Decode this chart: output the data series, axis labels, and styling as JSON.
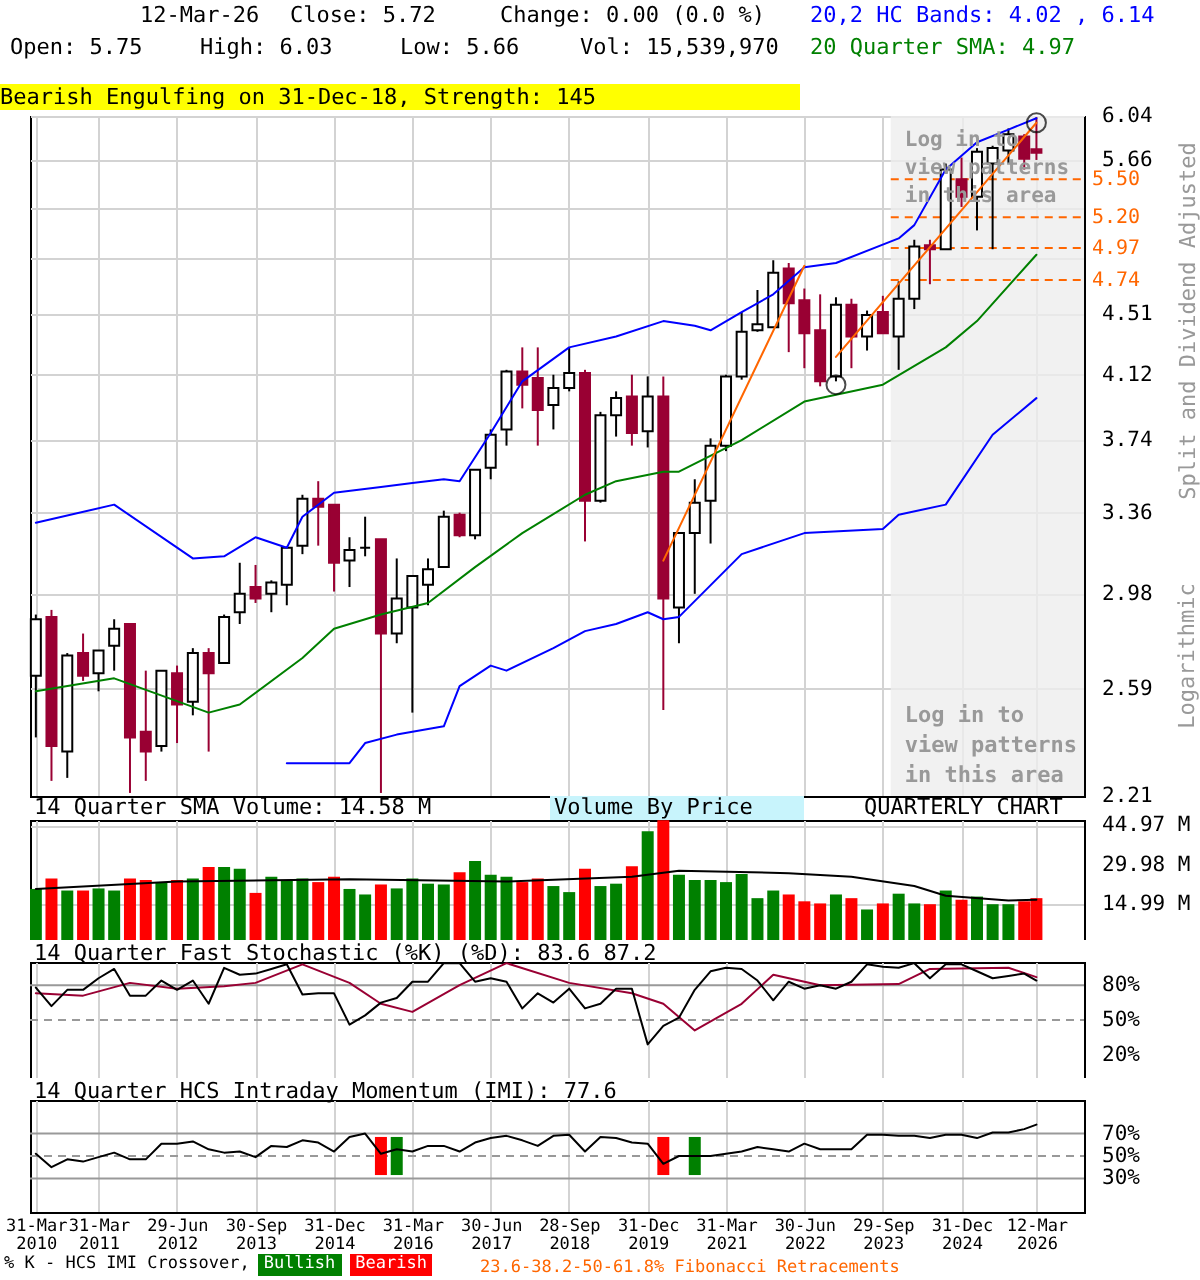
{
  "chart_data": [
    {
      "type": "candlestick",
      "subtitle": "Bearish Engulfing on 31-Dec-18, Strength: 145",
      "ylabel": "Split and Dividend Adjusted",
      "annotations": [
        "12-Mar-26",
        "Close: 5.72",
        "Change: 0.00 (0.0 %)",
        "Open: 5.75",
        "High: 6.03",
        "Low: 5.66",
        "Vol: 15,539,970",
        "Logarithmic",
        "Log in to view patterns in this area",
        "23.6-38.2-50-61.8% Fibonacci Retracements"
      ],
      "x": [
        "2010-03-31",
        "2010-06-30",
        "2010-09-30",
        "2010-12-31",
        "2011-03-31",
        "2011-06-30",
        "2011-09-30",
        "2011-12-31",
        "2012-03-31",
        "2012-06-30",
        "2012-09-30",
        "2012-12-31",
        "2013-03-31",
        "2013-06-30",
        "2013-09-30",
        "2013-12-31",
        "2014-03-31",
        "2014-06-30",
        "2014-09-30",
        "2014-12-31",
        "2015-03-31",
        "2015-06-30",
        "2015-09-30",
        "2015-12-31",
        "2016-03-31",
        "2016-06-30",
        "2016-09-30",
        "2016-12-31",
        "2017-03-31",
        "2017-06-30",
        "2017-09-30",
        "2017-12-31",
        "2018-03-31",
        "2018-06-30",
        "2018-09-30",
        "2018-12-31",
        "2019-03-31",
        "2019-06-30",
        "2019-09-30",
        "2019-12-31",
        "2020-03-31",
        "2020-06-30",
        "2020-09-30",
        "2020-12-31",
        "2021-03-31",
        "2021-06-30",
        "2021-09-30",
        "2021-12-31",
        "2022-03-31",
        "2022-06-30",
        "2022-09-30",
        "2022-12-31",
        "2023-03-31",
        "2023-06-30",
        "2023-09-30",
        "2023-12-31",
        "2024-03-31",
        "2024-06-30",
        "2024-09-30",
        "2024-12-31",
        "2025-03-31",
        "2025-06-30",
        "2025-09-30",
        "2025-12-31",
        "2026-03-12"
      ],
      "ohlc": [
        [
          2.64,
          2.89,
          2.41,
          2.87
        ],
        [
          2.88,
          2.91,
          2.26,
          2.38
        ],
        [
          2.36,
          2.73,
          2.27,
          2.72
        ],
        [
          2.73,
          2.81,
          2.62,
          2.64
        ],
        [
          2.65,
          2.74,
          2.58,
          2.74
        ],
        [
          2.76,
          2.87,
          2.66,
          2.83
        ],
        [
          2.85,
          2.85,
          2.22,
          2.41
        ],
        [
          2.43,
          2.66,
          2.26,
          2.36
        ],
        [
          2.38,
          2.66,
          2.36,
          2.66
        ],
        [
          2.65,
          2.68,
          2.39,
          2.53
        ],
        [
          2.54,
          2.75,
          2.49,
          2.73
        ],
        [
          2.73,
          2.75,
          2.36,
          2.65
        ],
        [
          2.69,
          2.89,
          2.69,
          2.88
        ],
        [
          2.9,
          3.12,
          2.85,
          2.98
        ],
        [
          3.01,
          3.11,
          2.94,
          2.96
        ],
        [
          2.98,
          3.04,
          2.9,
          3.03
        ],
        [
          3.02,
          3.19,
          2.93,
          3.19
        ],
        [
          3.2,
          3.45,
          3.16,
          3.43
        ],
        [
          3.43,
          3.52,
          3.2,
          3.39
        ],
        [
          3.4,
          3.4,
          2.99,
          3.12
        ],
        [
          3.13,
          3.24,
          3.01,
          3.18
        ],
        [
          3.19,
          3.34,
          3.15,
          3.19
        ],
        [
          3.23,
          3.23,
          2.22,
          2.81
        ],
        [
          2.81,
          3.14,
          2.77,
          2.96
        ],
        [
          2.92,
          3.06,
          2.5,
          3.06
        ],
        [
          3.02,
          3.14,
          2.93,
          3.09
        ],
        [
          3.1,
          3.37,
          3.1,
          3.34
        ],
        [
          3.35,
          3.36,
          3.24,
          3.25
        ],
        [
          3.25,
          3.58,
          3.23,
          3.58
        ],
        [
          3.59,
          3.8,
          3.53,
          3.77
        ],
        [
          3.8,
          4.15,
          3.71,
          4.14
        ],
        [
          4.14,
          4.29,
          3.92,
          4.06
        ],
        [
          4.1,
          4.29,
          3.71,
          3.91
        ],
        [
          3.94,
          4.12,
          3.8,
          4.04
        ],
        [
          4.04,
          4.29,
          4.02,
          4.13
        ],
        [
          4.13,
          4.15,
          3.22,
          3.42
        ],
        [
          3.42,
          3.9,
          3.41,
          3.88
        ],
        [
          3.88,
          4.02,
          3.76,
          3.98
        ],
        [
          3.99,
          4.12,
          3.71,
          3.78
        ],
        [
          3.79,
          4.11,
          3.7,
          3.99
        ],
        [
          3.99,
          4.11,
          2.51,
          2.96
        ],
        [
          2.92,
          3.26,
          2.77,
          3.26
        ],
        [
          3.26,
          3.53,
          2.98,
          3.41
        ],
        [
          3.42,
          3.75,
          3.21,
          3.71
        ],
        [
          3.71,
          4.12,
          3.68,
          4.11
        ],
        [
          4.11,
          4.52,
          4.09,
          4.39
        ],
        [
          4.4,
          4.67,
          4.39,
          4.44
        ],
        [
          4.42,
          4.88,
          4.42,
          4.79
        ],
        [
          4.82,
          4.86,
          4.26,
          4.58
        ],
        [
          4.6,
          4.68,
          4.16,
          4.38
        ],
        [
          4.4,
          4.64,
          4.05,
          4.08
        ],
        [
          4.11,
          4.62,
          4.08,
          4.57
        ],
        [
          4.57,
          4.61,
          4.16,
          4.36
        ],
        [
          4.36,
          4.53,
          4.27,
          4.5
        ],
        [
          4.52,
          4.63,
          4.38,
          4.38
        ],
        [
          4.36,
          4.73,
          4.15,
          4.61
        ],
        [
          4.61,
          5.03,
          4.54,
          4.98
        ],
        [
          4.99,
          5.03,
          4.71,
          4.96
        ],
        [
          4.96,
          5.63,
          4.96,
          5.58
        ],
        [
          5.5,
          5.68,
          5.28,
          5.36
        ],
        [
          5.36,
          5.76,
          5.1,
          5.73
        ],
        [
          5.63,
          5.78,
          4.96,
          5.76
        ],
        [
          5.74,
          5.93,
          5.63,
          5.88
        ],
        [
          5.86,
          5.88,
          5.58,
          5.67
        ],
        [
          5.75,
          6.03,
          5.66,
          5.72
        ]
      ],
      "colors": [
        "#ffffff",
        "#990033",
        "#ffffff",
        "#990033",
        "#ffffff",
        "#ffffff",
        "#990033",
        "#990033",
        "#ffffff",
        "#990033",
        "#ffffff",
        "#990033",
        "#ffffff",
        "#ffffff",
        "#990033",
        "#ffffff",
        "#ffffff",
        "#ffffff",
        "#990033",
        "#990033",
        "#ffffff",
        "#000000",
        "#990033",
        "#ffffff",
        "#ffffff",
        "#ffffff",
        "#ffffff",
        "#990033",
        "#ffffff",
        "#ffffff",
        "#ffffff",
        "#990033",
        "#990033",
        "#ffffff",
        "#ffffff",
        "#990033",
        "#ffffff",
        "#ffffff",
        "#990033",
        "#ffffff",
        "#990033",
        "#ffffff",
        "#ffffff",
        "#ffffff",
        "#ffffff",
        "#ffffff",
        "#ffffff",
        "#ffffff",
        "#990033",
        "#990033",
        "#990033",
        "#ffffff",
        "#990033",
        "#ffffff",
        "#990033",
        "#ffffff",
        "#ffffff",
        "#990033",
        "#ffffff",
        "#990033",
        "#ffffff",
        "#ffffff",
        "#ffffff",
        "#990033",
        "#990033"
      ],
      "series": [
        {
          "type": "line",
          "name": "20,2 HC Bands: 4.02 , 6.14",
          "color": "#0000ff",
          "x": [
            "2010-03-31",
            "2011-06-30",
            "2012-09-30",
            "2013-03-31",
            "2013-09-30",
            "2014-03-31",
            "2014-06-30",
            "2014-12-31",
            "2015-09-30",
            "2016-03-31",
            "2016-09-30",
            "2016-12-31",
            "2017-06-30",
            "2017-12-31",
            "2018-09-30",
            "2019-06-30",
            "2020-03-31",
            "2020-09-30",
            "2020-12-31",
            "2021-06-30",
            "2021-12-31",
            "2022-06-30",
            "2022-12-31",
            "2023-12-31",
            "2024-03-31",
            "2024-09-30",
            "2025-03-31",
            "2025-09-30",
            "2026-03-12"
          ],
          "values": [
            3.31,
            3.4,
            3.14,
            3.15,
            3.24,
            3.19,
            3.34,
            3.46,
            3.49,
            3.51,
            3.53,
            3.52,
            3.78,
            4.08,
            4.29,
            4.36,
            4.46,
            4.43,
            4.4,
            4.52,
            4.64,
            4.83,
            4.86,
            5.04,
            5.14,
            5.58,
            5.81,
            5.92,
            6.02
          ]
        },
        {
          "type": "line",
          "color": "#0000ff",
          "x": [
            "2014-03-31",
            "2015-03-31",
            "2015-06-30",
            "2015-12-31",
            "2016-09-30",
            "2016-12-31",
            "2017-06-30",
            "2017-09-30",
            "2018-06-30",
            "2018-12-31",
            "2019-06-30",
            "2019-12-31",
            "2020-03-31",
            "2020-06-30",
            "2021-06-30",
            "2022-06-30",
            "2023-09-30",
            "2023-12-31",
            "2024-09-30",
            "2025-06-30",
            "2026-03-12"
          ],
          "values": [
            2.32,
            2.32,
            2.39,
            2.42,
            2.45,
            2.6,
            2.68,
            2.66,
            2.75,
            2.82,
            2.85,
            2.9,
            2.87,
            2.88,
            3.16,
            3.26,
            3.28,
            3.35,
            3.4,
            3.77,
            3.98
          ]
        },
        {
          "type": "line",
          "name": "20 Quarter SMA: 4.97",
          "color": "#008000",
          "x": [
            "2010-03-31",
            "2011-06-30",
            "2012-12-31",
            "2013-06-30",
            "2014-06-30",
            "2014-12-31",
            "2015-09-30",
            "2016-06-30",
            "2017-03-31",
            "2017-12-31",
            "2018-12-31",
            "2019-06-30",
            "2020-03-31",
            "2020-06-30",
            "2021-06-30",
            "2022-06-30",
            "2023-09-30",
            "2024-09-30",
            "2025-03-31",
            "2026-03-12"
          ],
          "values": [
            2.58,
            2.63,
            2.5,
            2.53,
            2.71,
            2.83,
            2.89,
            2.94,
            3.1,
            3.26,
            3.45,
            3.52,
            3.57,
            3.57,
            3.74,
            3.96,
            4.06,
            4.29,
            4.46,
            4.92
          ]
        },
        {
          "type": "line",
          "color": "#ff6600",
          "x": [
            "2020-03-31",
            "2022-06-30"
          ],
          "values": [
            3.13,
            4.84
          ]
        },
        {
          "type": "line",
          "color": "#ff6600",
          "x": [
            "2022-12-31",
            "2026-03-12"
          ],
          "values": [
            4.23,
            5.98
          ]
        },
        {
          "type": "scatter",
          "color": "#000000",
          "marker": "circle",
          "x": [
            "2022-12-31",
            "2026-03-12"
          ],
          "values": [
            4.06,
            5.98
          ]
        }
      ],
      "ref_lines": [
        {
          "axis": "y",
          "value": 5.5,
          "label": "5.50",
          "color": "#ff6600",
          "line_style": "dashed"
        },
        {
          "axis": "y",
          "value": 5.2,
          "label": "5.20",
          "color": "#ff6600",
          "line_style": "dashed"
        },
        {
          "axis": "y",
          "value": 4.97,
          "label": "4.97",
          "color": "#ff6600",
          "line_style": "dashed"
        },
        {
          "axis": "y",
          "value": 4.74,
          "label": "4.74",
          "color": "#ff6600",
          "line_style": "dashed"
        }
      ],
      "bands": [
        {
          "axis": "x",
          "from": "2023-11-15",
          "to": "2026-12-14",
          "label": "Log in to view patterns in this area",
          "color": "#eeeeee"
        }
      ],
      "xlim": [
        "2010-02-25",
        "2026-12-14"
      ],
      "xticks": [
        {
          "value": "2010-03-31",
          "label": null
        },
        {
          "value": "2011-03-31",
          "label": null
        },
        {
          "value": "2012-06-29",
          "label": null
        },
        {
          "value": "2013-09-30",
          "label": null
        },
        {
          "value": "2014-12-31",
          "label": null
        },
        {
          "value": "2016-03-31",
          "label": null
        },
        {
          "value": "2017-06-30",
          "label": null
        },
        {
          "value": "2018-09-28",
          "label": null
        },
        {
          "value": "2019-12-31",
          "label": null
        },
        {
          "value": "2021-03-31",
          "label": null
        },
        {
          "value": "2022-06-30",
          "label": null
        },
        {
          "value": "2023-09-29",
          "label": null
        },
        {
          "value": "2024-12-31",
          "label": null
        },
        {
          "value": "2026-03-12",
          "label": null
        }
      ],
      "ylim": [
        2.21,
        6.04
      ],
      "yticks": [
        2.21,
        2.59,
        2.98,
        3.36,
        3.74,
        4.12,
        4.51,
        {
          "value": 4.89,
          "label": null
        },
        {
          "value": 5.27,
          "label": null
        },
        5.66,
        6.04
      ],
      "log": true,
      "grid": true,
      "tick_labels": "y",
      "legend": "top right"
    },
    {
      "type": "bar",
      "title": "14 Quarter SMA Volume: 14.58 M",
      "annotations": [
        "Volume By Price",
        "QUARTERLY CHART"
      ],
      "x": [
        "2010-03-31",
        "2010-06-30",
        "2010-09-30",
        "2010-12-31",
        "2011-03-31",
        "2011-06-30",
        "2011-09-30",
        "2011-12-31",
        "2012-03-31",
        "2012-06-30",
        "2012-09-30",
        "2012-12-31",
        "2013-03-31",
        "2013-06-30",
        "2013-09-30",
        "2013-12-31",
        "2014-03-31",
        "2014-06-30",
        "2014-09-30",
        "2014-12-31",
        "2015-03-31",
        "2015-06-30",
        "2015-09-30",
        "2015-12-31",
        "2016-03-31",
        "2016-06-30",
        "2016-09-30",
        "2016-12-31",
        "2017-03-31",
        "2017-06-30",
        "2017-09-30",
        "2017-12-31",
        "2018-03-31",
        "2018-06-30",
        "2018-09-30",
        "2018-12-31",
        "2019-03-31",
        "2019-06-30",
        "2019-09-30",
        "2019-12-31",
        "2020-03-31",
        "2020-06-30",
        "2020-09-30",
        "2020-12-31",
        "2021-03-31",
        "2021-06-30",
        "2021-09-30",
        "2021-12-31",
        "2022-03-31",
        "2022-06-30",
        "2022-09-30",
        "2022-12-31",
        "2023-03-31",
        "2023-06-30",
        "2023-09-30",
        "2023-12-31",
        "2024-03-31",
        "2024-06-30",
        "2024-09-30",
        "2024-12-31",
        "2025-03-31",
        "2025-06-30",
        "2025-09-30",
        "2025-12-31",
        "2026-03-12"
      ],
      "series": [
        {
          "type": "bar",
          "values": [
            20.8,
            24.8,
            20.2,
            20.2,
            21.0,
            20.2,
            24.8,
            24.2,
            23.1,
            24.2,
            24.8,
            29.1,
            29.1,
            28.5,
            19.3,
            25.4,
            23.9,
            24.8,
            23.4,
            25.4,
            20.8,
            18.7,
            22.5,
            21.0,
            24.8,
            22.8,
            22.5,
            27.1,
            31.4,
            26.2,
            25.4,
            23.4,
            24.8,
            21.9,
            19.6,
            28.5,
            21.9,
            22.8,
            29.4,
            42.7,
            46.9,
            26.2,
            24.2,
            24.2,
            23.4,
            26.5,
            17.3,
            20.2,
            18.7,
            16.1,
            15.3,
            18.7,
            17.3,
            13.0,
            15.3,
            19.0,
            15.3,
            15.0,
            20.2,
            16.7,
            17.9,
            15.0,
            15.0,
            16.1,
            17.3
          ],
          "colors": [
            "#008000",
            "#ff0000",
            "#008000",
            "#ff0000",
            "#008000",
            "#008000",
            "#ff0000",
            "#ff0000",
            "#008000",
            "#ff0000",
            "#008000",
            "#ff0000",
            "#008000",
            "#008000",
            "#ff0000",
            "#008000",
            "#008000",
            "#008000",
            "#ff0000",
            "#ff0000",
            "#008000",
            "#008000",
            "#ff0000",
            "#008000",
            "#008000",
            "#008000",
            "#008000",
            "#ff0000",
            "#008000",
            "#008000",
            "#008000",
            "#ff0000",
            "#ff0000",
            "#008000",
            "#008000",
            "#ff0000",
            "#008000",
            "#008000",
            "#ff0000",
            "#008000",
            "#ff0000",
            "#008000",
            "#008000",
            "#008000",
            "#008000",
            "#008000",
            "#008000",
            "#008000",
            "#ff0000",
            "#ff0000",
            "#ff0000",
            "#008000",
            "#ff0000",
            "#008000",
            "#ff0000",
            "#008000",
            "#008000",
            "#ff0000",
            "#008000",
            "#ff0000",
            "#008000",
            "#008000",
            "#008000",
            "#ff0000",
            "#ff0000"
          ]
        },
        {
          "type": "line",
          "color": "#000000",
          "x": [
            "2010-03-31",
            "2012-06-30",
            "2015-03-31",
            "2017-09-30",
            "2019-09-30",
            "2020-06-30",
            "2022-03-31",
            "2023-03-31",
            "2024-03-31",
            "2024-09-30",
            "2025-09-30",
            "2026-03-12"
          ],
          "values": [
            20.8,
            23.6,
            24.5,
            23.6,
            25.4,
            27.7,
            26.8,
            25.4,
            21.9,
            18.2,
            16.4,
            16.7
          ]
        }
      ],
      "xlim": [
        "2010-02-25",
        "2026-12-14"
      ],
      "xticks": [
        {
          "value": "2010-03-31",
          "label": null
        },
        {
          "value": "2011-03-31",
          "label": null
        },
        {
          "value": "2012-06-29",
          "label": null
        },
        {
          "value": "2013-09-30",
          "label": null
        },
        {
          "value": "2014-12-31",
          "label": null
        },
        {
          "value": "2016-03-31",
          "label": null
        },
        {
          "value": "2017-06-30",
          "label": null
        },
        {
          "value": "2018-09-28",
          "label": null
        },
        {
          "value": "2019-12-31",
          "label": null
        },
        {
          "value": "2021-03-31",
          "label": null
        },
        {
          "value": "2022-06-30",
          "label": null
        },
        {
          "value": "2023-09-29",
          "label": null
        },
        {
          "value": "2024-12-31",
          "label": null
        },
        {
          "value": "2026-03-12",
          "label": null
        }
      ],
      "ylim": [
        1.4,
        47
      ],
      "yticks": [
        {
          "value": 14.99,
          "label": "14.99 M"
        },
        {
          "value": 29.98,
          "label": "29.98 M"
        },
        {
          "value": 44.97,
          "label": "44.97 M"
        }
      ],
      "grid": true,
      "tick_labels": "y"
    },
    {
      "type": "line",
      "title": "14 Quarter Fast Stochastic (%K) (%D): 83.6  87.2",
      "x": [
        "2010-03-31",
        "2010-06-30",
        "2010-09-30",
        "2010-12-31",
        "2011-03-31",
        "2011-06-30",
        "2011-09-30",
        "2011-12-31",
        "2012-03-31",
        "2012-06-30",
        "2012-09-30",
        "2012-12-31",
        "2013-03-31",
        "2013-06-30",
        "2013-09-30",
        "2013-12-31",
        "2014-03-31",
        "2014-06-30",
        "2014-09-30",
        "2014-12-31",
        "2015-03-31",
        "2015-06-30",
        "2015-09-30",
        "2015-12-31",
        "2016-03-31",
        "2016-06-30",
        "2016-09-30",
        "2016-12-31",
        "2017-03-31",
        "2017-06-30",
        "2017-09-30",
        "2017-12-31",
        "2018-03-31",
        "2018-06-30",
        "2018-09-30",
        "2018-12-31",
        "2019-03-31",
        "2019-06-30",
        "2019-09-30",
        "2019-12-31",
        "2020-03-31",
        "2020-06-30",
        "2020-09-30",
        "2020-12-31",
        "2021-03-31",
        "2021-06-30",
        "2021-09-30",
        "2021-12-31",
        "2022-03-31",
        "2022-06-30",
        "2022-09-30",
        "2022-12-31",
        "2023-03-31",
        "2023-06-30",
        "2023-09-30",
        "2023-12-31",
        "2024-03-31",
        "2024-06-30",
        "2024-09-30",
        "2024-12-31",
        "2025-03-31",
        "2025-06-30",
        "2025-09-30",
        "2025-12-31",
        "2026-03-12"
      ],
      "series": [
        {
          "type": "line",
          "color": "#990033",
          "x": [
            "2010-03-31",
            "2010-12-31",
            "2011-09-30",
            "2012-06-30",
            "2013-03-31",
            "2013-09-30",
            "2014-06-30",
            "2015-03-31",
            "2015-09-30",
            "2016-03-31",
            "2016-12-31",
            "2017-09-30",
            "2018-09-30",
            "2019-09-30",
            "2020-03-31",
            "2020-09-30",
            "2021-06-30",
            "2021-12-31",
            "2022-09-30",
            "2023-12-31",
            "2024-06-30",
            "2025-09-30",
            "2026-03-12"
          ],
          "values": [
            73,
            71,
            82,
            77,
            79,
            82,
            98,
            82,
            64,
            57,
            80,
            99,
            82,
            73,
            64,
            41,
            64,
            89,
            80,
            81,
            94,
            95,
            87
          ]
        },
        {
          "type": "line",
          "color": "#000000",
          "values": [
            78,
            62,
            76,
            76,
            86,
            94,
            71,
            71,
            84,
            76,
            84,
            64,
            95,
            89,
            90,
            94,
            98,
            72,
            73,
            73,
            46,
            54,
            65,
            69,
            83,
            83,
            99,
            99,
            83,
            86,
            83,
            60,
            73,
            65,
            77,
            60,
            64,
            77,
            77,
            29,
            45,
            52,
            76,
            92,
            95,
            94,
            84,
            67,
            83,
            77,
            80,
            77,
            83,
            98,
            96,
            95,
            99,
            86,
            98,
            98,
            92,
            86,
            88,
            90,
            84
          ]
        }
      ],
      "ref_lines": [
        {
          "axis": "y",
          "value": 80,
          "color": "#999999",
          "line_style": "solid"
        },
        {
          "axis": "y",
          "value": 50,
          "color": "#999999",
          "line_style": "dashed"
        }
      ],
      "xlim": [
        "2010-02-25",
        "2026-12-14"
      ],
      "xticks": [
        {
          "value": "2010-03-31",
          "label": null
        },
        {
          "value": "2011-03-31",
          "label": null
        },
        {
          "value": "2012-06-29",
          "label": null
        },
        {
          "value": "2013-09-30",
          "label": null
        },
        {
          "value": "2014-12-31",
          "label": null
        },
        {
          "value": "2016-03-31",
          "label": null
        },
        {
          "value": "2017-06-30",
          "label": null
        },
        {
          "value": "2018-09-28",
          "label": null
        },
        {
          "value": "2019-12-31",
          "label": null
        },
        {
          "value": "2021-03-31",
          "label": null
        },
        {
          "value": "2022-06-30",
          "label": null
        },
        {
          "value": "2023-09-29",
          "label": null
        },
        {
          "value": "2024-12-31",
          "label": null
        },
        {
          "value": "2026-03-12",
          "label": null
        }
      ],
      "ylim": [
        0,
        100
      ],
      "yticks": [
        {
          "value": 20,
          "label": "20%"
        },
        {
          "value": 50,
          "label": "50%"
        },
        {
          "value": 80,
          "label": "80%"
        }
      ],
      "grid": "x",
      "tick_labels": "y"
    },
    {
      "type": "line",
      "title": "14 Quarter HCS Intraday Momentum (IMI): 77.6",
      "legend_title": "% K - HCS IMI Crossover,",
      "x": [
        "2010-03-31",
        "2010-06-30",
        "2010-09-30",
        "2010-12-31",
        "2011-03-31",
        "2011-06-30",
        "2011-09-30",
        "2011-12-31",
        "2012-03-31",
        "2012-06-30",
        "2012-09-30",
        "2012-12-31",
        "2013-03-31",
        "2013-06-30",
        "2013-09-30",
        "2013-12-31",
        "2014-03-31",
        "2014-06-30",
        "2014-09-30",
        "2014-12-31",
        "2015-03-31",
        "2015-06-30",
        "2015-09-30",
        "2015-12-31",
        "2016-03-31",
        "2016-06-30",
        "2016-09-30",
        "2016-12-31",
        "2017-03-31",
        "2017-06-30",
        "2017-09-30",
        "2017-12-31",
        "2018-03-31",
        "2018-06-30",
        "2018-09-30",
        "2018-12-31",
        "2019-03-31",
        "2019-06-30",
        "2019-09-30",
        "2019-12-31",
        "2020-03-31",
        "2020-06-30",
        "2020-09-30",
        "2020-12-31",
        "2021-03-31",
        "2021-06-30",
        "2021-09-30",
        "2021-12-31",
        "2022-03-31",
        "2022-06-30",
        "2022-09-30",
        "2022-12-31",
        "2023-03-31",
        "2023-06-30",
        "2023-09-30",
        "2023-12-31",
        "2024-03-31",
        "2024-06-30",
        "2024-09-30",
        "2024-12-31",
        "2025-03-31",
        "2025-06-30",
        "2025-09-30",
        "2025-12-31",
        "2026-03-12"
      ],
      "series": [
        {
          "type": "bar",
          "name": "Bullish",
          "color": "#008000",
          "x": [
            "2015-12-31",
            "2020-09-30"
          ],
          "base": [
            33,
            33
          ],
          "values": [
            34,
            34
          ]
        },
        {
          "type": "bar",
          "name": "Bearish",
          "color": "#ff0000",
          "x": [
            "2015-09-30",
            "2020-03-31"
          ],
          "base": [
            33,
            33
          ],
          "values": [
            34,
            34
          ]
        },
        {
          "type": "line",
          "color": "#000000",
          "values": [
            52,
            40,
            47,
            45,
            49,
            53,
            47,
            47,
            61,
            61,
            63,
            56,
            53,
            54,
            49,
            59,
            58,
            64,
            62,
            54,
            67,
            70,
            52,
            56,
            54,
            59,
            59,
            54,
            62,
            66,
            68,
            64,
            59,
            68,
            69,
            54,
            67,
            66,
            62,
            61,
            43,
            50,
            50,
            50,
            52,
            54,
            58,
            56,
            54,
            61,
            56,
            56,
            56,
            69,
            69,
            68,
            68,
            66,
            69,
            69,
            66,
            71,
            71,
            74,
            78
          ]
        }
      ],
      "ref_lines": [
        {
          "axis": "y",
          "value": 70,
          "color": "#999999",
          "line_style": "solid"
        },
        {
          "axis": "y",
          "value": 50,
          "color": "#999999",
          "line_style": "dashed"
        },
        {
          "axis": "y",
          "value": 30,
          "color": "#999999",
          "line_style": "solid"
        }
      ],
      "xlim": [
        "2010-02-25",
        "2026-12-14"
      ],
      "xticks": [
        {
          "value": "2010-03-31",
          "label": "31-Mar 2010"
        },
        {
          "value": "2011-03-31",
          "label": "31-Mar 2011"
        },
        {
          "value": "2012-06-29",
          "label": "29-Jun 2012"
        },
        {
          "value": "2013-09-30",
          "label": "30-Sep 2013"
        },
        {
          "value": "2014-12-31",
          "label": "31-Dec 2014"
        },
        {
          "value": "2016-03-31",
          "label": "31-Mar 2016"
        },
        {
          "value": "2017-06-30",
          "label": "30-Jun 2017"
        },
        {
          "value": "2018-09-28",
          "label": "28-Sep 2018"
        },
        {
          "value": "2019-12-31",
          "label": "31-Dec 2019"
        },
        {
          "value": "2021-03-31",
          "label": "31-Mar 2021"
        },
        {
          "value": "2022-06-30",
          "label": "30-Jun 2022"
        },
        {
          "value": "2023-09-29",
          "label": "29-Sep 2023"
        },
        {
          "value": "2024-12-31",
          "label": "31-Dec 2024"
        },
        {
          "value": "2026-03-12",
          "label": "12-Mar 2026"
        }
      ],
      "ylim": [
        0,
        100
      ],
      "yticks": [
        {
          "value": 30,
          "label": "30%"
        },
        {
          "value": 50,
          "label": "50%"
        },
        {
          "value": 70,
          "label": "70%"
        }
      ],
      "grid": "x",
      "legend": "bottom left"
    }
  ]
}
